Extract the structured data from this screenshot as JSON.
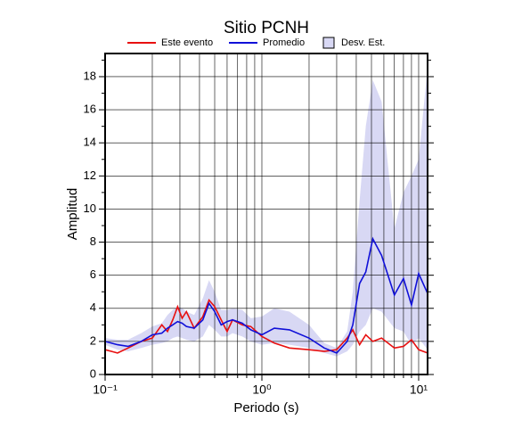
{
  "chart_data": {
    "type": "line",
    "title": "Sitio PCNH",
    "x_label": "Periodo (s)",
    "y_label": "Amplitud",
    "log_x": true,
    "grid": true,
    "xlim": [
      0.1,
      11.4
    ],
    "ylim": [
      0,
      19.4
    ],
    "xticks": [
      {
        "value": 0.1,
        "label": "10⁻¹"
      },
      {
        "value": 1,
        "label": "10⁰"
      },
      {
        "value": 10,
        "label": "10¹"
      }
    ],
    "xgrid": [
      0.2,
      0.3,
      0.4,
      0.5,
      0.6,
      0.7,
      0.8,
      0.9,
      2,
      3,
      4,
      5,
      6,
      7,
      8,
      9
    ],
    "yticks": [
      0,
      2,
      4,
      6,
      8,
      10,
      12,
      14,
      16,
      18
    ],
    "yminorticks": [
      1,
      3,
      5,
      7,
      9,
      11,
      13,
      15,
      17,
      19
    ],
    "x": [
      0.1,
      0.12,
      0.14,
      0.17,
      0.2,
      0.23,
      0.25,
      0.27,
      0.29,
      0.31,
      0.33,
      0.37,
      0.42,
      0.46,
      0.5,
      0.55,
      0.6,
      0.65,
      0.75,
      0.85,
      1.0,
      1.2,
      1.5,
      2.0,
      2.5,
      3.0,
      3.5,
      3.8,
      4.2,
      4.6,
      5.1,
      5.8,
      7.0,
      8.0,
      9.0,
      10.0,
      11.4
    ],
    "series": [
      {
        "name": "Este evento",
        "color": "#e81010",
        "values": [
          1.5,
          1.3,
          1.6,
          2.0,
          2.2,
          3.0,
          2.6,
          3.3,
          4.1,
          3.4,
          3.8,
          2.8,
          3.5,
          4.5,
          4.1,
          3.3,
          2.6,
          3.3,
          3.0,
          2.9,
          2.3,
          1.9,
          1.6,
          1.5,
          1.4,
          1.5,
          2.2,
          2.7,
          1.8,
          2.4,
          2.0,
          2.2,
          1.6,
          1.7,
          2.1,
          1.5,
          1.3
        ]
      },
      {
        "name": "Promedio",
        "color": "#1010d8",
        "values": [
          2.0,
          1.8,
          1.7,
          2.0,
          2.4,
          2.5,
          2.8,
          3.0,
          3.2,
          3.1,
          2.9,
          2.8,
          3.3,
          4.3,
          3.8,
          3.0,
          3.2,
          3.3,
          3.1,
          2.7,
          2.4,
          2.8,
          2.7,
          2.2,
          1.6,
          1.3,
          2.0,
          3.0,
          5.5,
          6.2,
          8.2,
          7.2,
          4.8,
          5.8,
          4.2,
          6.1,
          4.9
        ]
      },
      {
        "name": "Desv. Est.",
        "color": "#d8d8f4",
        "band": true,
        "lower": [
          1.8,
          1.5,
          1.4,
          1.6,
          1.8,
          1.9,
          2.0,
          2.2,
          2.3,
          2.2,
          2.1,
          2.0,
          2.3,
          3.0,
          2.7,
          2.3,
          2.3,
          2.5,
          2.3,
          2.0,
          1.8,
          1.9,
          1.8,
          1.6,
          1.3,
          1.1,
          1.4,
          1.8,
          2.6,
          3.0,
          4.0,
          3.8,
          2.8,
          2.6,
          1.8,
          2.2,
          1.5
        ],
        "upper": [
          2.2,
          2.1,
          2.1,
          2.5,
          2.9,
          3.1,
          3.6,
          3.9,
          4.1,
          4.0,
          3.8,
          3.6,
          4.6,
          5.7,
          5.0,
          3.9,
          3.9,
          4.0,
          3.9,
          3.4,
          3.5,
          4.0,
          3.8,
          3.0,
          1.9,
          1.6,
          2.6,
          5.0,
          10.5,
          15.0,
          17.8,
          16.5,
          8.8,
          11.0,
          12.0,
          13.0,
          18.6
        ]
      }
    ]
  }
}
